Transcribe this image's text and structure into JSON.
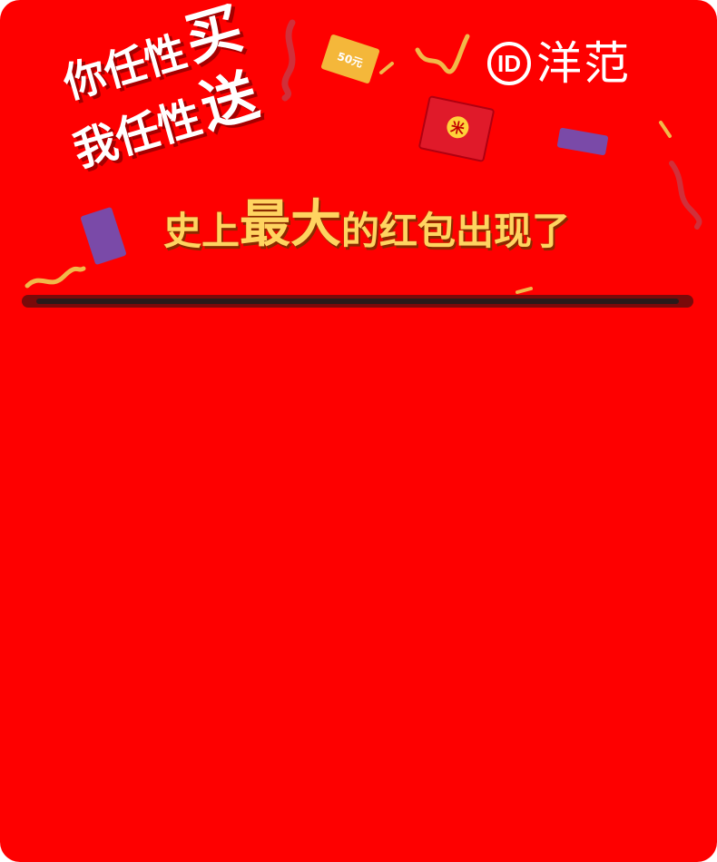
{
  "slogan": {
    "line1_main": "你任性",
    "line1_big": "买",
    "line2_main": "我任性",
    "line2_big": "送"
  },
  "logo": {
    "mark": "ID",
    "text": "洋范"
  },
  "headline": {
    "part1": "史上",
    "part2": "最大",
    "part3": "的红包出现了"
  },
  "decorations": {
    "ticket_label": "50元",
    "packet_seal": "米"
  },
  "colors": {
    "background": "#fe0000",
    "headline_gold": "#ffd460",
    "divider": "#7a0a0a"
  }
}
